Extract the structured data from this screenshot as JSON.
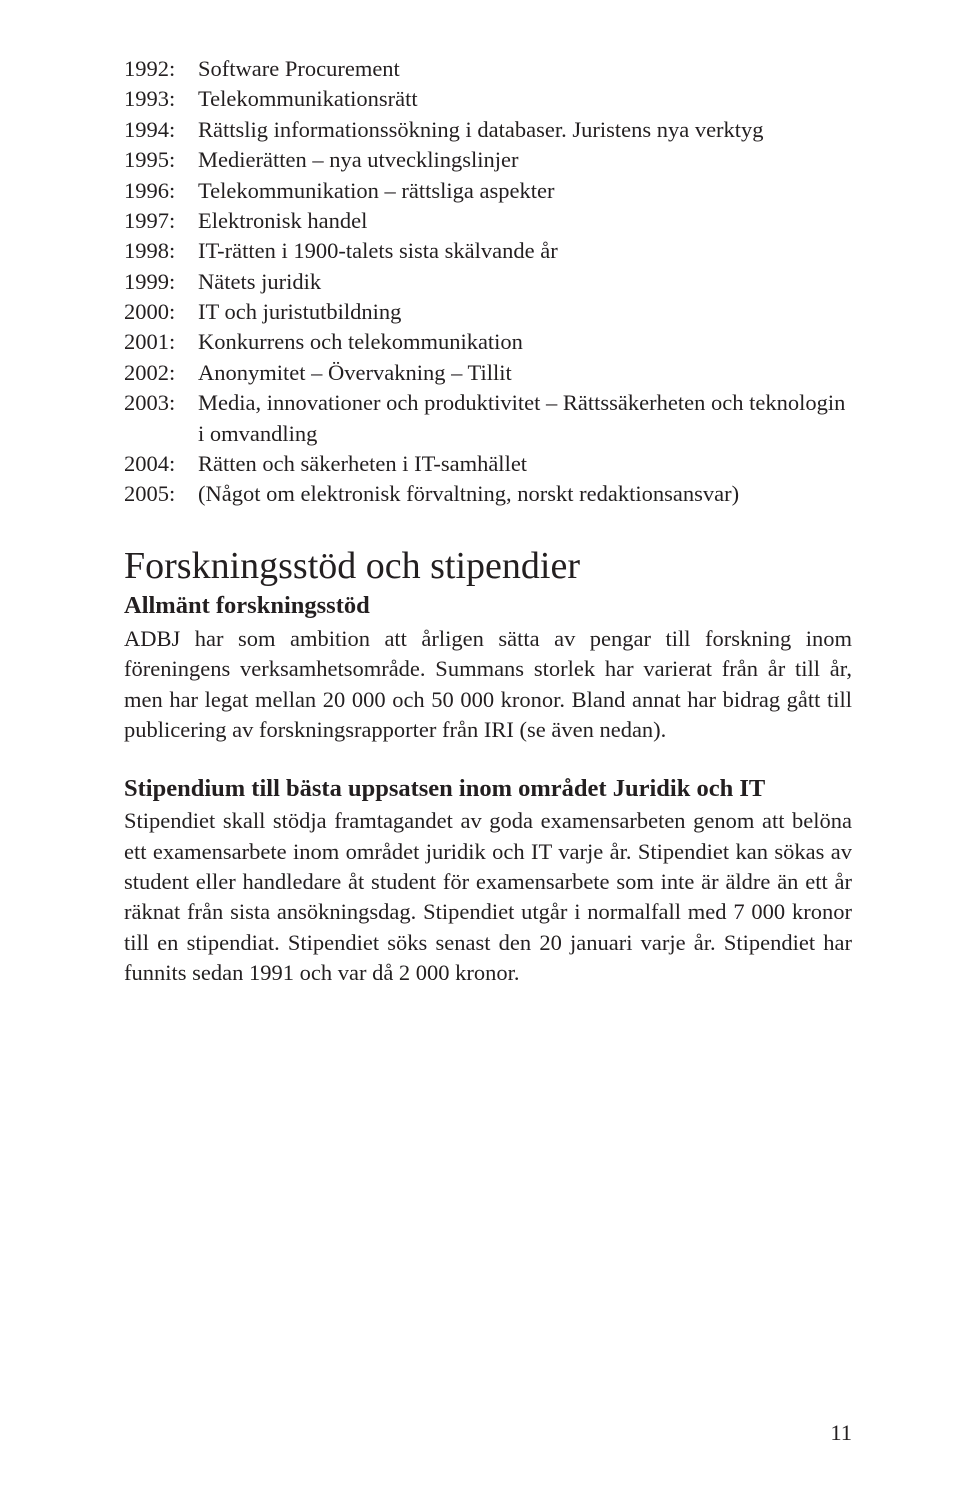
{
  "timeline": [
    {
      "year": "1992:",
      "desc": "Software Procurement"
    },
    {
      "year": "1993:",
      "desc": "Telekommunikationsrätt"
    },
    {
      "year": "1994:",
      "desc": "Rättslig informationssökning i databaser. Juristens nya verktyg"
    },
    {
      "year": "1995:",
      "desc": "Medierätten – nya utvecklingslinjer"
    },
    {
      "year": "1996:",
      "desc": "Telekommunikation – rättsliga aspekter"
    },
    {
      "year": "1997:",
      "desc": "Elektronisk handel"
    },
    {
      "year": "1998:",
      "desc": "IT-rätten i 1900-talets sista skälvande år"
    },
    {
      "year": "1999:",
      "desc": "Nätets juridik"
    },
    {
      "year": "2000:",
      "desc": "IT och juristutbildning"
    },
    {
      "year": "2001:",
      "desc": "Konkurrens och telekommunikation"
    },
    {
      "year": "2002:",
      "desc": "Anonymitet – Övervakning – Tillit"
    },
    {
      "year": "2003:",
      "desc": "Media, innovationer och produktivitet – Rättssäkerheten och teknologin i omvandling"
    },
    {
      "year": "2004:",
      "desc": "Rätten och säkerheten i IT-samhället"
    },
    {
      "year": "2005:",
      "desc": "(Något om elektronisk förvaltning, norskt redaktionsansvar)"
    }
  ],
  "heading1": "Forskningsstöd och stipendier",
  "section1": {
    "title": "Allmänt forskningsstöd",
    "body": "ADBJ har som ambition att årligen sätta av pengar till forskning inom föreningens verksamhetsområde. Summans storlek har varierat från år till år, men har legat mellan 20 000 och 50 000 kronor. Bland annat har bidrag gått till publicering av forskningsrapporter från IRI (se även nedan)."
  },
  "section2": {
    "title": "Stipendium till bästa uppsatsen inom området Juridik och IT",
    "body": "Stipendiet skall stödja framtagandet av goda examensarbeten genom att belöna ett examensarbete inom området juridik och IT varje år. Stipendiet kan sökas av student eller handledare åt student för examensarbete som inte är äldre än ett år räknat från sista ansökningsdag. Stipendiet utgår i normalfall med 7 000 kronor till en stipendiat. Stipendiet söks senast den 20 januari varje år. Stipendiet har funnits sedan 1991 och var då 2 000 kronor."
  },
  "pageNumber": "11"
}
